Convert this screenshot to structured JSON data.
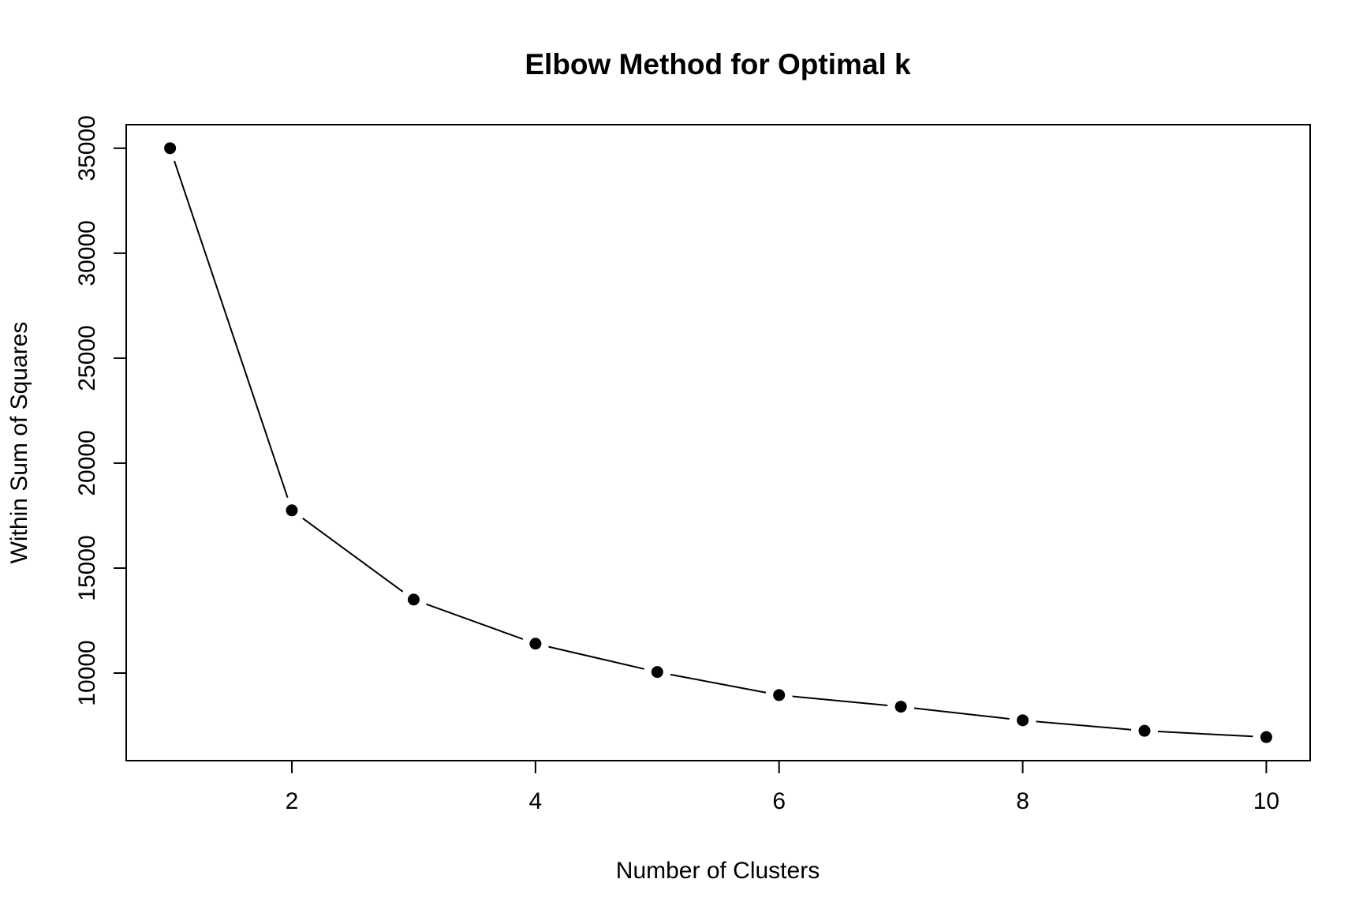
{
  "chart_data": {
    "type": "line",
    "title": "Elbow Method for Optimal k",
    "xlabel": "Number of Clusters",
    "ylabel": "Within Sum of Squares",
    "x": [
      1,
      2,
      3,
      4,
      5,
      6,
      7,
      8,
      9,
      10
    ],
    "series": [
      {
        "values": [
          35000,
          17750,
          13500,
          11400,
          10050,
          8950,
          8400,
          7750,
          7250,
          6950
        ]
      }
    ],
    "xticks": [
      2,
      4,
      6,
      8,
      10
    ],
    "xtick_labels": [
      "2",
      "4",
      "6",
      "8",
      "10"
    ],
    "yticks": [
      10000,
      15000,
      20000,
      25000,
      30000,
      35000
    ],
    "ytick_labels": [
      "10000",
      "15000",
      "20000",
      "25000",
      "30000",
      "35000"
    ],
    "xlim": [
      0.64,
      10.36
    ],
    "ylim": [
      5828,
      36122
    ],
    "grid": false,
    "legend": "none",
    "colors": {
      "line": "#000000",
      "point": "#000000",
      "frame": "#000000",
      "background": "#ffffff"
    }
  }
}
